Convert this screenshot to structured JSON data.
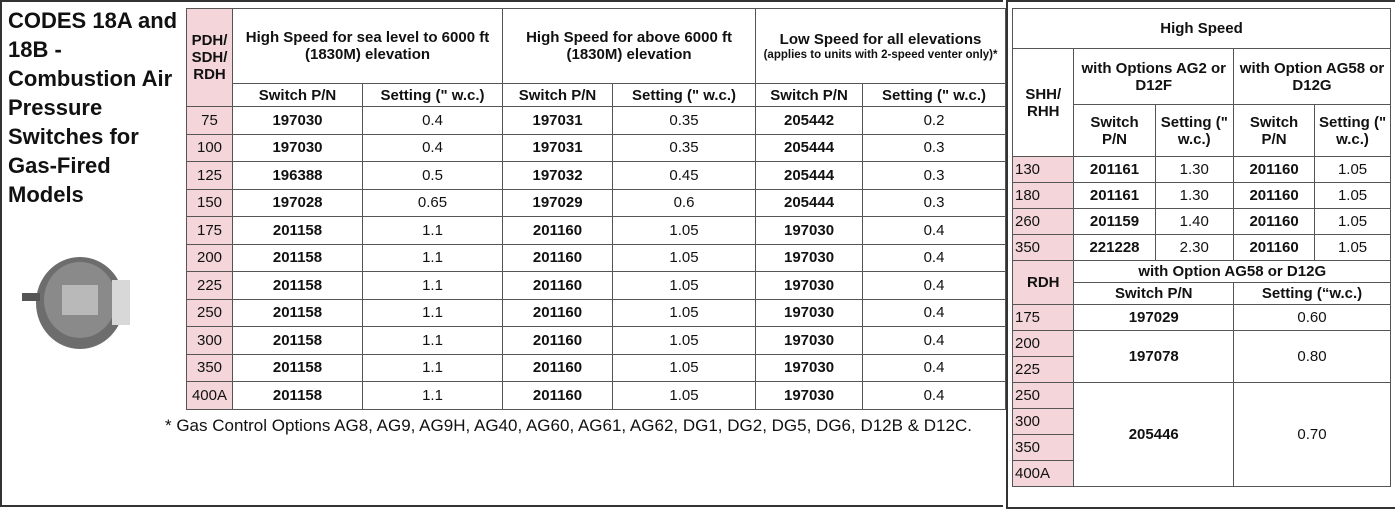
{
  "title": "CODES 18A and 18B - Combustion Air Pressure Switches for Gas-Fired Models",
  "table1": {
    "model_header": "PDH/ SDH/ RDH",
    "groups": [
      "High Speed for sea level to 6000 ft (1830M) elevation",
      "High Speed for above 6000 ft (1830M) elevation",
      "Low Speed for all elevations"
    ],
    "group_note": "(applies to units with 2-speed venter only)*",
    "subheaders": [
      "Switch P/N",
      "Setting (\" w.c.)",
      "Switch P/N",
      "Setting (\" w.c.)",
      "Switch P/N",
      "Setting (\" w.c.)"
    ],
    "rows": [
      [
        "75",
        "197030",
        "0.4",
        "197031",
        "0.35",
        "205442",
        "0.2"
      ],
      [
        "100",
        "197030",
        "0.4",
        "197031",
        "0.35",
        "205444",
        "0.3"
      ],
      [
        "125",
        "196388",
        "0.5",
        "197032",
        "0.45",
        "205444",
        "0.3"
      ],
      [
        "150",
        "197028",
        "0.65",
        "197029",
        "0.6",
        "205444",
        "0.3"
      ],
      [
        "175",
        "201158",
        "1.1",
        "201160",
        "1.05",
        "197030",
        "0.4"
      ],
      [
        "200",
        "201158",
        "1.1",
        "201160",
        "1.05",
        "197030",
        "0.4"
      ],
      [
        "225",
        "201158",
        "1.1",
        "201160",
        "1.05",
        "197030",
        "0.4"
      ],
      [
        "250",
        "201158",
        "1.1",
        "201160",
        "1.05",
        "197030",
        "0.4"
      ],
      [
        "300",
        "201158",
        "1.1",
        "201160",
        "1.05",
        "197030",
        "0.4"
      ],
      [
        "350",
        "201158",
        "1.1",
        "201160",
        "1.05",
        "197030",
        "0.4"
      ],
      [
        "400A",
        "201158",
        "1.1",
        "201160",
        "1.05",
        "197030",
        "0.4"
      ]
    ]
  },
  "footnote": "* Gas Control Options AG8, AG9, AG9H, AG40, AG60, AG61, AG62, DG1, DG2, DG5, DG6, D12B & D12C.",
  "table2": {
    "title": "High Speed",
    "model_header": "SHH/ RHH",
    "groups": [
      "with Options AG2 or D12F",
      "with Option AG58 or D12G"
    ],
    "subheaders": [
      "Switch P/N",
      "Setting (\" w.c.)",
      "Switch P/N",
      "Setting (\" w.c.)"
    ],
    "rows": [
      [
        "130",
        "201161",
        "1.30",
        "201160",
        "1.05"
      ],
      [
        "180",
        "201161",
        "1.30",
        "201160",
        "1.05"
      ],
      [
        "260",
        "201159",
        "1.40",
        "201160",
        "1.05"
      ],
      [
        "350",
        "221228",
        "2.30",
        "201160",
        "1.05"
      ]
    ]
  },
  "table3": {
    "model_header": "RDH",
    "group": "with Option AG58 or D12G",
    "subheaders": [
      "Switch P/N",
      "Setting (“w.c.)"
    ],
    "models": [
      "175",
      "200",
      "225",
      "250",
      "300",
      "350",
      "400A"
    ],
    "settings": [
      {
        "switch": "197029",
        "setting": "0.60"
      },
      {
        "switch": "197078",
        "setting": "0.80"
      },
      {
        "switch": "205446",
        "setting": "0.70"
      }
    ]
  }
}
